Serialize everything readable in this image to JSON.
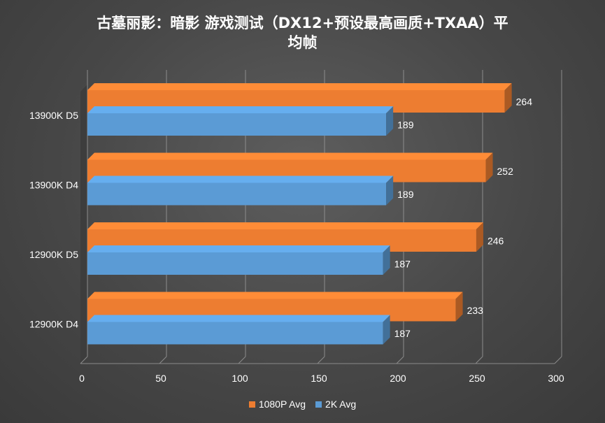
{
  "chart_data": {
    "type": "bar",
    "orientation": "horizontal",
    "title_lines": [
      "古墓丽影：暗影 游戏测试（DX12+预设最高画质+TXAA）平",
      "均帧"
    ],
    "categories": [
      "13900K D5",
      "13900K D4",
      "12900K D5",
      "12900K D4"
    ],
    "series": [
      {
        "name": "1080P Avg",
        "color": "#ed7d31",
        "values": [
          264,
          252,
          246,
          233
        ]
      },
      {
        "name": "2K Avg",
        "color": "#5b9bd5",
        "values": [
          189,
          189,
          187,
          187
        ]
      }
    ],
    "xlim": [
      0,
      300
    ],
    "xticks": [
      "0",
      "50",
      "100",
      "150",
      "200",
      "250",
      "300"
    ],
    "grid": true,
    "legend_position": "bottom",
    "style": "3d"
  }
}
